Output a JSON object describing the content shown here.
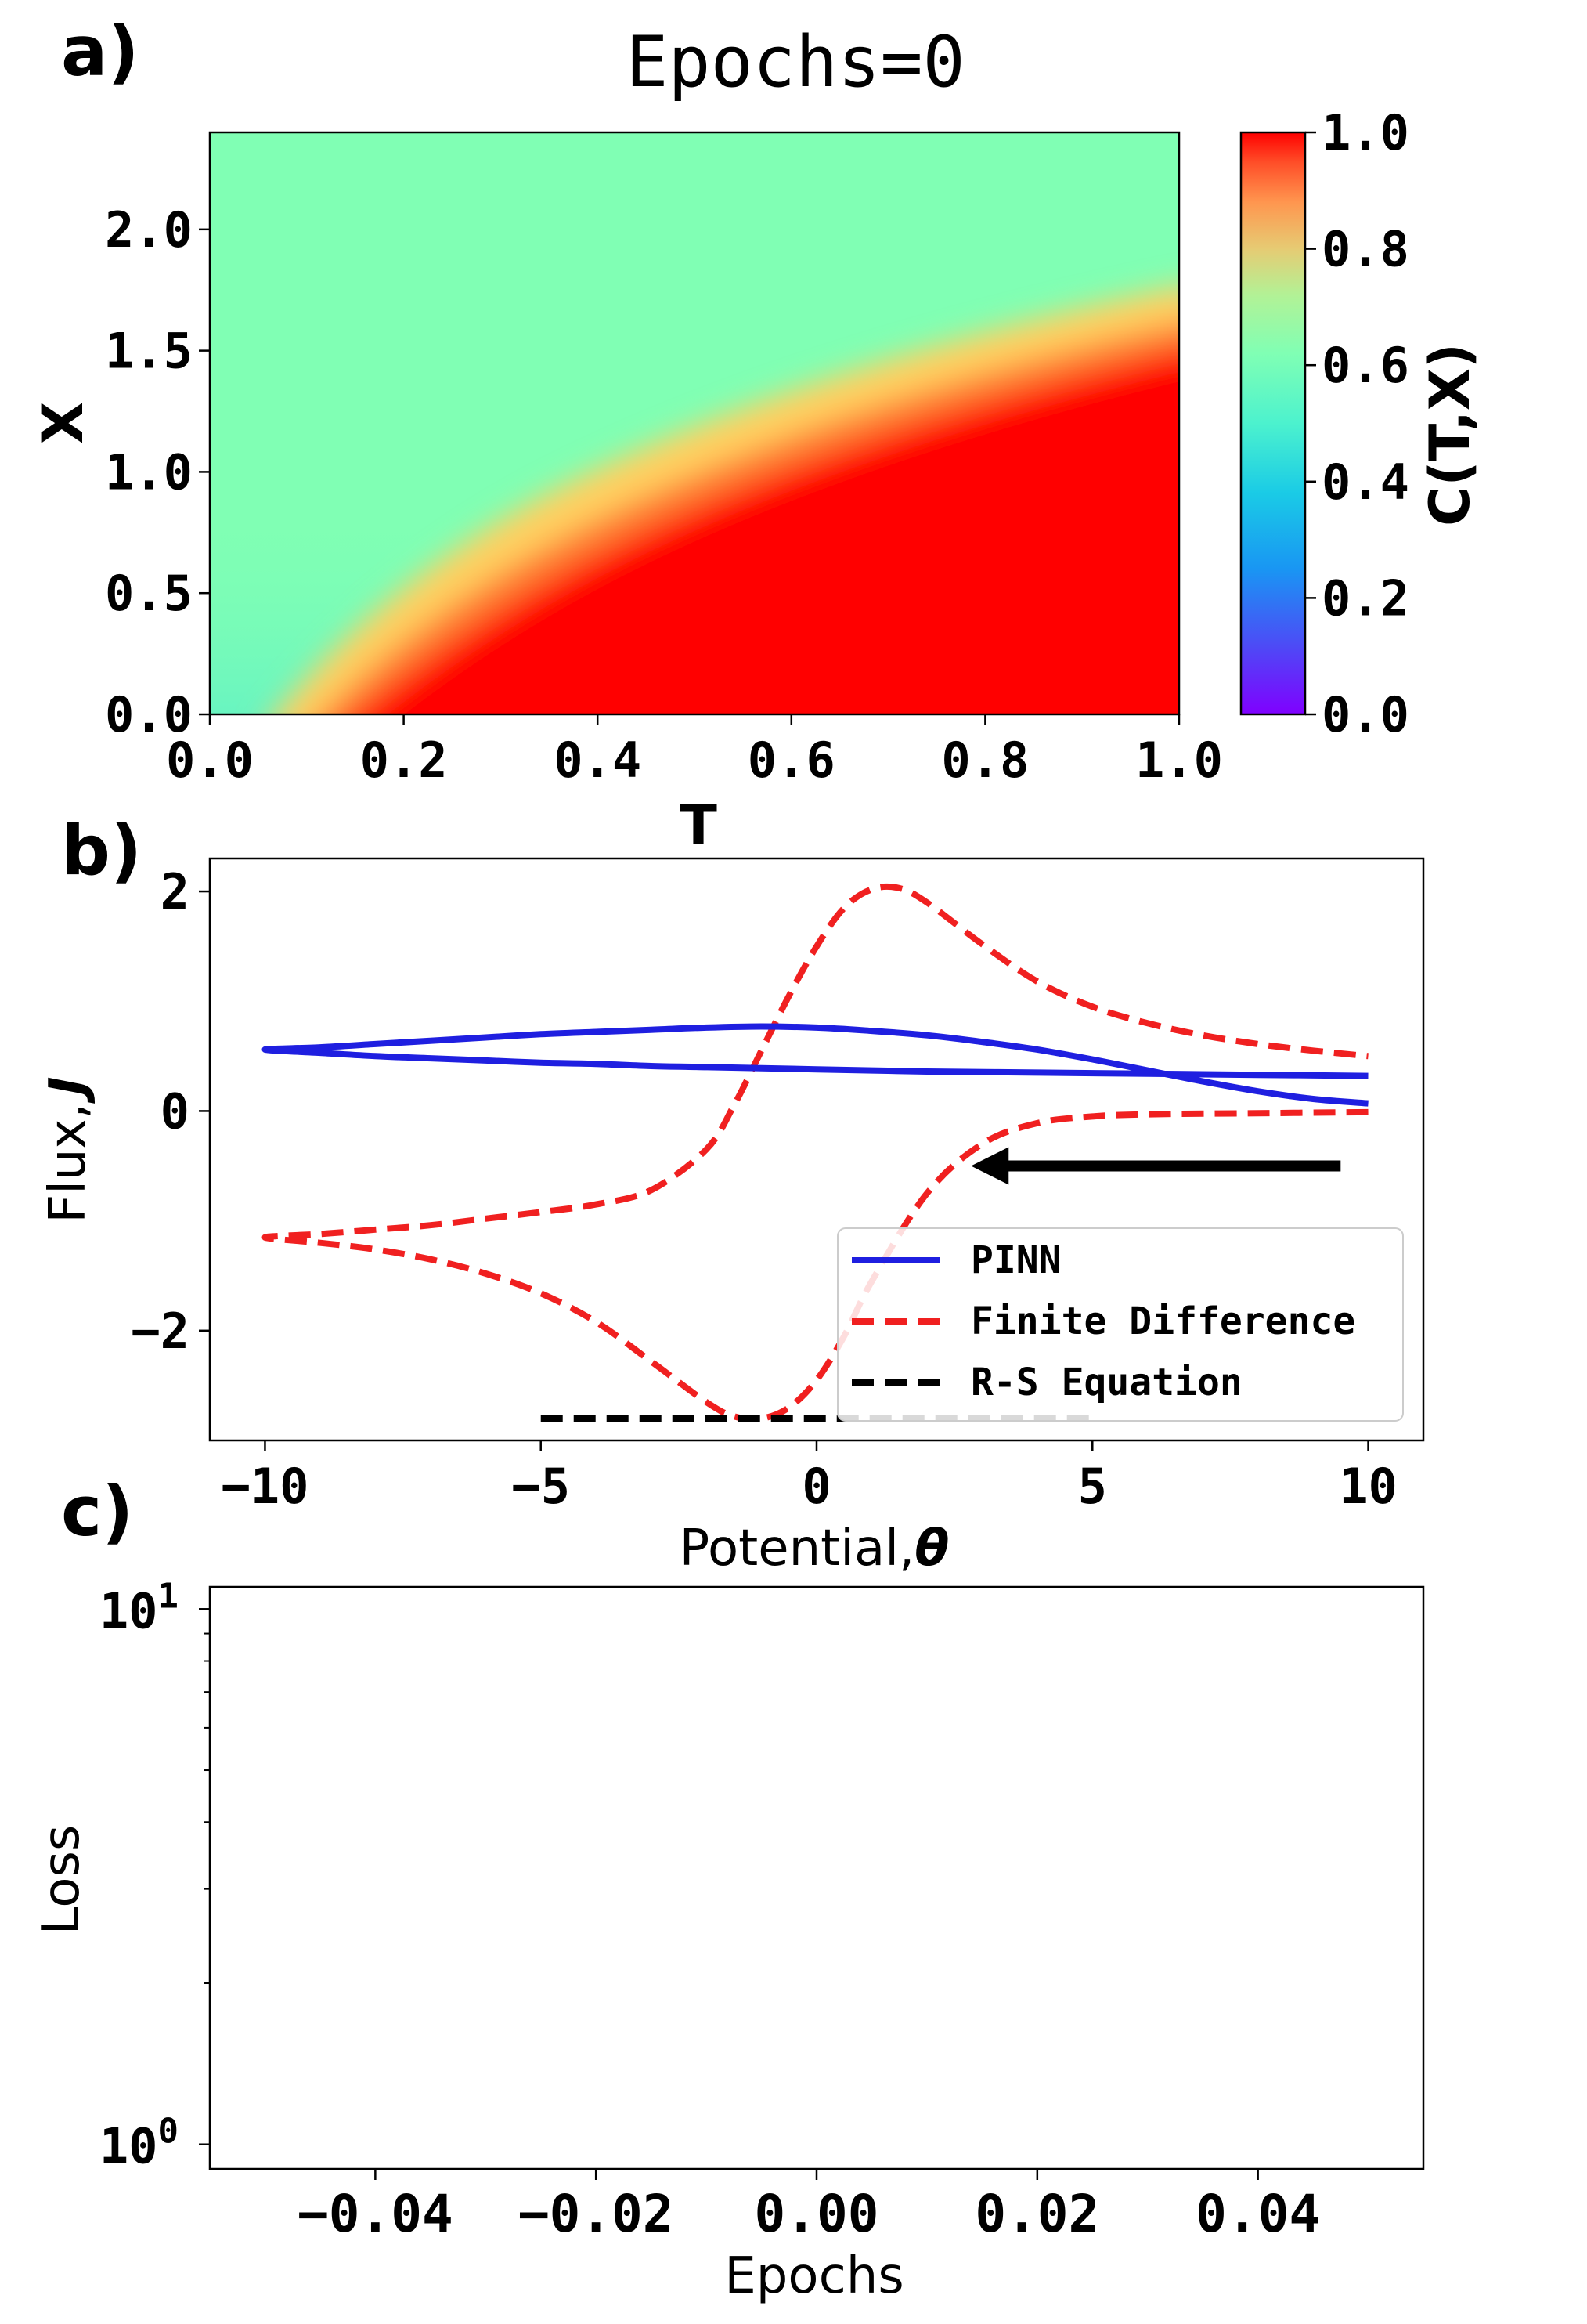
{
  "figure": {
    "panel_labels": [
      "a)",
      "b)",
      "c)"
    ]
  },
  "chart_data": [
    {
      "type": "heatmap",
      "panel": "a)",
      "title": "Epochs=0",
      "xlabel": "T",
      "ylabel": "X",
      "xlim": [
        0.0,
        1.0
      ],
      "ylim": [
        0.0,
        2.4
      ],
      "xticks": [
        "0.0",
        "0.2",
        "0.4",
        "0.6",
        "0.8",
        "1.0"
      ],
      "yticks": [
        "0.0",
        "0.5",
        "1.0",
        "1.5",
        "2.0"
      ],
      "colorbar": {
        "label": "C(T,X)",
        "range": [
          0.0,
          1.0
        ],
        "ticks": [
          "0.0",
          "0.2",
          "0.4",
          "0.6",
          "0.8",
          "1.0"
        ],
        "colormap": "rainbow"
      },
      "description_values": {
        "front_x_at_T": [
          [
            0.0,
            0.0
          ],
          [
            0.15,
            0.05
          ],
          [
            0.3,
            0.45
          ],
          [
            0.5,
            0.95
          ],
          [
            0.7,
            1.35
          ],
          [
            1.0,
            1.75
          ]
        ],
        "background_value": 0.55,
        "minimum_value": 0.0,
        "maximum_value": 1.0
      }
    },
    {
      "type": "line",
      "panel": "b)",
      "xlabel": "Potential,",
      "xlabel_symbol": "θ",
      "ylabel": "Flux,",
      "ylabel_symbol": "J",
      "xlim": [
        -11,
        11
      ],
      "ylim": [
        -3.0,
        2.3
      ],
      "xticks": [
        -10,
        -5,
        0,
        5,
        10
      ],
      "yticks": [
        -2,
        0,
        2
      ],
      "legend": [
        "PINN",
        "Finite Difference",
        "R-S Equation"
      ],
      "series": [
        {
          "name": "PINN",
          "color": "#1f1fe0",
          "style": "solid",
          "points": [
            [
              10,
              0.07
            ],
            [
              9,
              0.11
            ],
            [
              8,
              0.18
            ],
            [
              7,
              0.27
            ],
            [
              6,
              0.37
            ],
            [
              5,
              0.47
            ],
            [
              4,
              0.56
            ],
            [
              3,
              0.63
            ],
            [
              2,
              0.69
            ],
            [
              1,
              0.73
            ],
            [
              0,
              0.76
            ],
            [
              -1,
              0.77
            ],
            [
              -2,
              0.76
            ],
            [
              -3,
              0.74
            ],
            [
              -4,
              0.72
            ],
            [
              -5,
              0.7
            ],
            [
              -6,
              0.67
            ],
            [
              -7,
              0.64
            ],
            [
              -8,
              0.61
            ],
            [
              -9,
              0.58
            ],
            [
              -10,
              0.56
            ],
            [
              -9,
              0.53
            ],
            [
              -8,
              0.5
            ],
            [
              -7,
              0.48
            ],
            [
              -6,
              0.46
            ],
            [
              -5,
              0.44
            ],
            [
              -4,
              0.43
            ],
            [
              -3,
              0.41
            ],
            [
              -2,
              0.4
            ],
            [
              -1,
              0.39
            ],
            [
              0,
              0.38
            ],
            [
              1,
              0.37
            ],
            [
              2,
              0.36
            ],
            [
              4,
              0.35
            ],
            [
              6,
              0.34
            ],
            [
              8,
              0.33
            ],
            [
              10,
              0.32
            ]
          ]
        },
        {
          "name": "Finite Difference",
          "color": "#f02020",
          "style": "dashed",
          "points": [
            [
              10,
              -0.01
            ],
            [
              8,
              -0.02
            ],
            [
              6,
              -0.03
            ],
            [
              5,
              -0.05
            ],
            [
              4,
              -0.11
            ],
            [
              3,
              -0.3
            ],
            [
              2,
              -0.75
            ],
            [
              1,
              -1.55
            ],
            [
              0.5,
              -2.05
            ],
            [
              0,
              -2.45
            ],
            [
              -0.5,
              -2.7
            ],
            [
              -1,
              -2.8
            ],
            [
              -1.5,
              -2.78
            ],
            [
              -2,
              -2.65
            ],
            [
              -3,
              -2.28
            ],
            [
              -4,
              -1.92
            ],
            [
              -5,
              -1.66
            ],
            [
              -6,
              -1.48
            ],
            [
              -7,
              -1.35
            ],
            [
              -8,
              -1.26
            ],
            [
              -9,
              -1.2
            ],
            [
              -10,
              -1.15
            ],
            [
              -9,
              -1.12
            ],
            [
              -8,
              -1.08
            ],
            [
              -7,
              -1.04
            ],
            [
              -6,
              -0.98
            ],
            [
              -5,
              -0.92
            ],
            [
              -4,
              -0.85
            ],
            [
              -3,
              -0.72
            ],
            [
              -2,
              -0.35
            ],
            [
              -1.5,
              0.05
            ],
            [
              -1,
              0.55
            ],
            [
              -0.5,
              1.05
            ],
            [
              0,
              1.5
            ],
            [
              0.5,
              1.85
            ],
            [
              1,
              2.02
            ],
            [
              1.5,
              2.03
            ],
            [
              2,
              1.9
            ],
            [
              3,
              1.52
            ],
            [
              4,
              1.18
            ],
            [
              5,
              0.95
            ],
            [
              6,
              0.8
            ],
            [
              7,
              0.69
            ],
            [
              8,
              0.61
            ],
            [
              9,
              0.55
            ],
            [
              10,
              0.5
            ]
          ]
        },
        {
          "name": "R-S Equation",
          "color": "#000000",
          "style": "dashed",
          "points": [
            [
              -5,
              -2.8
            ],
            [
              5,
              -2.8
            ]
          ]
        }
      ],
      "annotations": [
        {
          "type": "arrow",
          "from": [
            9.5,
            -0.5
          ],
          "to": [
            2.8,
            -0.5
          ],
          "color": "#000000"
        }
      ]
    },
    {
      "type": "line",
      "panel": "c)",
      "xlabel": "Epochs",
      "ylabel": "Loss",
      "yscale": "log",
      "xlim": [
        -0.055,
        0.055
      ],
      "ylim": [
        0.9,
        11
      ],
      "xticks": [
        "−0.04",
        "−0.02",
        "0.00",
        "0.02",
        "0.04"
      ],
      "xtick_values": [
        -0.04,
        -0.02,
        0.0,
        0.02,
        0.04
      ],
      "yticks": [
        {
          "base": "10",
          "exp": "1",
          "value": 10
        },
        {
          "base": "10",
          "exp": "0",
          "value": 1
        }
      ],
      "series": []
    }
  ]
}
